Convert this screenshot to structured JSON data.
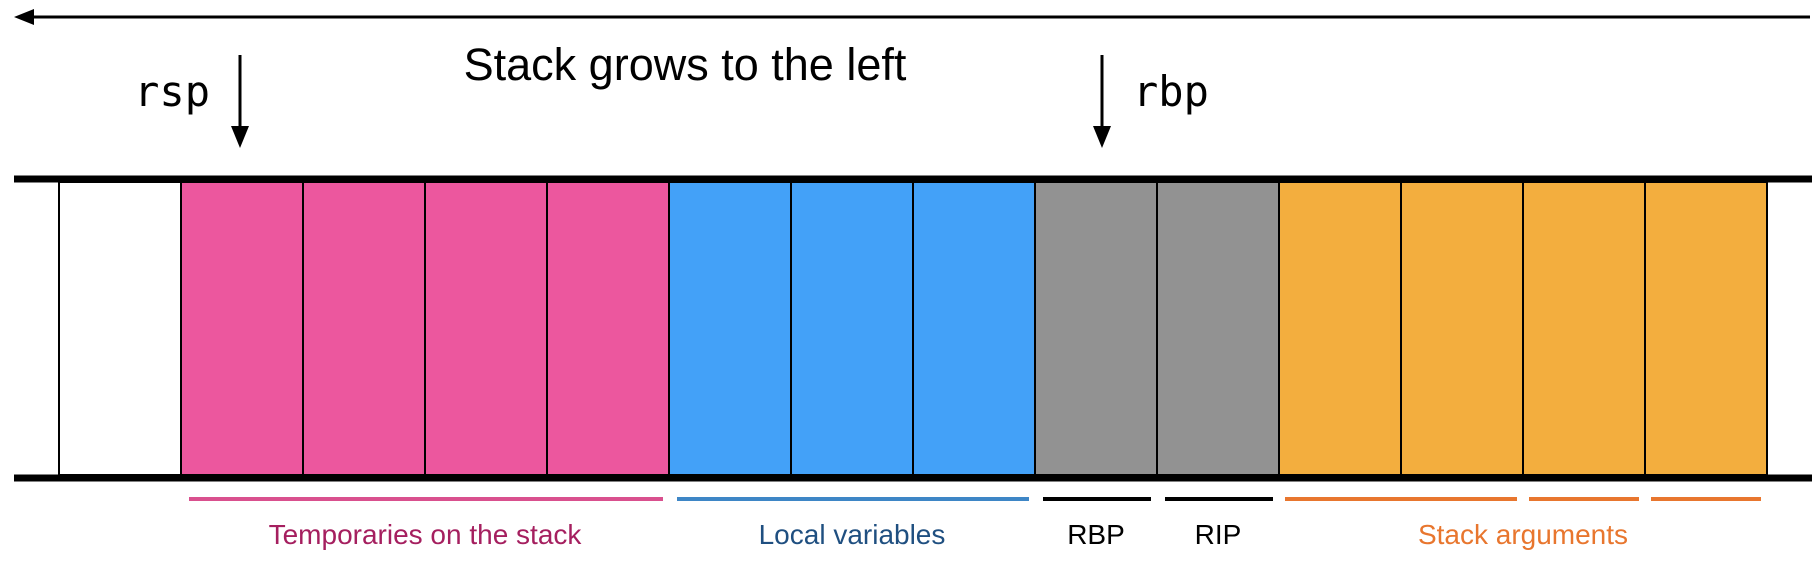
{
  "title": "Stack grows to the left",
  "pointers": {
    "rsp": "rsp",
    "rbp": "rbp"
  },
  "groups": [
    {
      "label": "Temporaries on the stack",
      "color": "#EC579E",
      "label_color": "#A51F5F",
      "line_color": "#D9508E",
      "slots": 4
    },
    {
      "label": "Local variables",
      "color": "#43A1F8",
      "label_color": "#1F4F80",
      "line_color": "#3E86C6",
      "slots": 3
    },
    {
      "label": "RBP",
      "color": "#929292",
      "label_color": "#000000",
      "line_color": "#000000",
      "slots": 1
    },
    {
      "label": "RIP",
      "color": "#929292",
      "label_color": "#000000",
      "line_color": "#000000",
      "slots": 1
    },
    {
      "label": "Stack arguments",
      "color": "#F3AE3E",
      "label_color": "#E8762E",
      "line_color": "#E8762E",
      "slots": 4
    }
  ],
  "empty_slots": 1
}
